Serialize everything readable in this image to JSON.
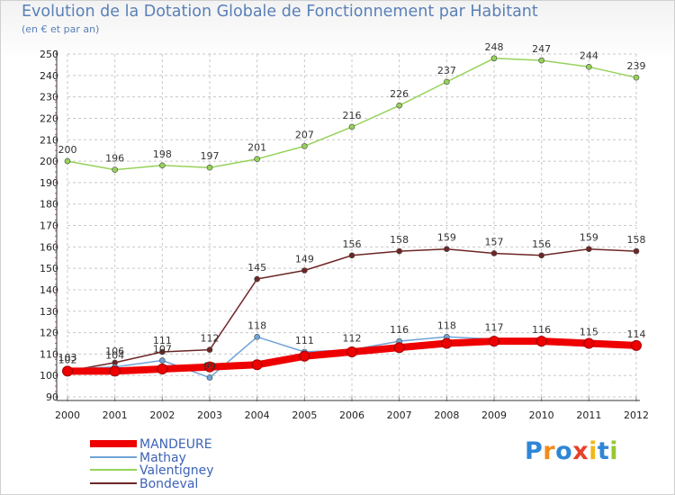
{
  "header": {
    "title": "Evolution de la Dotation Globale de Fonctionnement par Habitant",
    "subtitle": "(en € et par an)"
  },
  "logo": {
    "text": "Proxiti",
    "letters": [
      "P",
      "r",
      "o",
      "x",
      "i",
      "t",
      "i"
    ]
  },
  "colors": {
    "title": "#5a80b8",
    "mandeure": "#ee0000",
    "mathay": "#6fa3d8",
    "valentigney": "#96d25a",
    "bondeval": "#6e2626",
    "logo_letters": [
      "#2e86d6",
      "#f08c1e",
      "#2e86d6",
      "#e8402a",
      "#f0b81e",
      "#2e86d6",
      "#96c832"
    ]
  },
  "chart_data": {
    "type": "line",
    "title": "Evolution de la Dotation Globale de Fonctionnement par Habitant",
    "subtitle": "(en € et par an)",
    "xlabel": "",
    "ylabel": "",
    "x": [
      2000,
      2001,
      2002,
      2003,
      2004,
      2005,
      2006,
      2007,
      2008,
      2009,
      2010,
      2011,
      2012
    ],
    "ylim": [
      90,
      250
    ],
    "yticks": [
      90,
      100,
      110,
      120,
      130,
      140,
      150,
      160,
      170,
      180,
      190,
      200,
      210,
      220,
      230,
      240,
      250
    ],
    "grid": true,
    "legend_position": "bottom-left",
    "series": [
      {
        "name": "MANDEURE",
        "values": [
          102,
          102,
          103,
          104,
          105,
          109,
          111,
          113,
          115,
          116,
          116,
          115,
          114
        ],
        "labels_shown": false
      },
      {
        "name": "Mathay",
        "values": [
          103,
          104,
          107,
          99,
          118,
          111,
          112,
          116,
          118,
          117,
          116,
          115,
          114
        ],
        "labels_shown": true
      },
      {
        "name": "Valentigney",
        "values": [
          200,
          196,
          198,
          197,
          201,
          207,
          216,
          226,
          237,
          248,
          247,
          244,
          239
        ],
        "labels_shown": true
      },
      {
        "name": "Bondeval",
        "values": [
          102,
          106,
          111,
          112,
          145,
          149,
          156,
          158,
          159,
          157,
          156,
          159,
          158
        ],
        "labels_shown": true
      }
    ]
  }
}
